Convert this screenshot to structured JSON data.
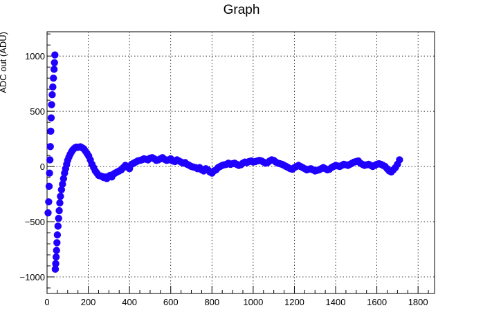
{
  "chart_data": {
    "type": "scatter",
    "title": "Graph",
    "xlabel": "",
    "ylabel": "ADC out (ADU)",
    "xlim": [
      0,
      1880
    ],
    "ylim": [
      -1150,
      1220
    ],
    "xticks": [
      0,
      200,
      400,
      600,
      800,
      1000,
      1200,
      1400,
      1600,
      1800
    ],
    "yticks": [
      -1000,
      -500,
      0,
      500,
      1000
    ],
    "ytick_labels": [
      "−1000",
      "−500",
      "0",
      "500",
      "1000"
    ],
    "grid": true,
    "marker_color": "#1f00ff",
    "series": [
      {
        "points": [
          [
            5,
            -420
          ],
          [
            8,
            -320
          ],
          [
            10,
            -180
          ],
          [
            12,
            -60
          ],
          [
            14,
            60
          ],
          [
            16,
            180
          ],
          [
            18,
            320
          ],
          [
            20,
            440
          ],
          [
            22,
            560
          ],
          [
            25,
            650
          ],
          [
            28,
            720
          ],
          [
            31,
            800
          ],
          [
            34,
            880
          ],
          [
            36,
            940
          ],
          [
            38,
            1010
          ],
          [
            40,
            -930
          ],
          [
            42,
            -880
          ],
          [
            44,
            -820
          ],
          [
            46,
            -760
          ],
          [
            48,
            -690
          ],
          [
            50,
            -620
          ],
          [
            53,
            -540
          ],
          [
            56,
            -470
          ],
          [
            59,
            -400
          ],
          [
            62,
            -330
          ],
          [
            65,
            -270
          ],
          [
            70,
            -210
          ],
          [
            75,
            -160
          ],
          [
            80,
            -110
          ],
          [
            85,
            -60
          ],
          [
            90,
            -20
          ],
          [
            95,
            20
          ],
          [
            100,
            55
          ],
          [
            106,
            85
          ],
          [
            112,
            110
          ],
          [
            118,
            130
          ],
          [
            124,
            148
          ],
          [
            130,
            160
          ],
          [
            136,
            170
          ],
          [
            142,
            175
          ],
          [
            148,
            172
          ],
          [
            155,
            175
          ],
          [
            162,
            178
          ],
          [
            170,
            170
          ],
          [
            178,
            160
          ],
          [
            186,
            140
          ],
          [
            194,
            118
          ],
          [
            202,
            95
          ],
          [
            210,
            60
          ],
          [
            218,
            20
          ],
          [
            226,
            -10
          ],
          [
            234,
            -40
          ],
          [
            242,
            -60
          ],
          [
            250,
            -80
          ],
          [
            258,
            -85
          ],
          [
            266,
            -90
          ],
          [
            274,
            -100
          ],
          [
            282,
            -95
          ],
          [
            290,
            -110
          ],
          [
            298,
            -90
          ],
          [
            306,
            -80
          ],
          [
            314,
            -95
          ],
          [
            322,
            -70
          ],
          [
            330,
            -60
          ],
          [
            340,
            -50
          ],
          [
            350,
            -40
          ],
          [
            360,
            -30
          ],
          [
            370,
            -10
          ],
          [
            380,
            10
          ],
          [
            390,
            -5
          ],
          [
            400,
            -20
          ],
          [
            410,
            20
          ],
          [
            420,
            30
          ],
          [
            430,
            40
          ],
          [
            440,
            50
          ],
          [
            450,
            55
          ],
          [
            460,
            60
          ],
          [
            470,
            70
          ],
          [
            480,
            65
          ],
          [
            490,
            60
          ],
          [
            500,
            75
          ],
          [
            510,
            80
          ],
          [
            520,
            70
          ],
          [
            530,
            55
          ],
          [
            540,
            60
          ],
          [
            550,
            70
          ],
          [
            560,
            80
          ],
          [
            570,
            65
          ],
          [
            580,
            55
          ],
          [
            590,
            60
          ],
          [
            600,
            70
          ],
          [
            610,
            50
          ],
          [
            620,
            45
          ],
          [
            630,
            60
          ],
          [
            640,
            50
          ],
          [
            650,
            40
          ],
          [
            660,
            30
          ],
          [
            670,
            35
          ],
          [
            680,
            20
          ],
          [
            690,
            10
          ],
          [
            700,
            0
          ],
          [
            710,
            -5
          ],
          [
            720,
            -10
          ],
          [
            730,
            -20
          ],
          [
            740,
            -10
          ],
          [
            750,
            -30
          ],
          [
            760,
            -40
          ],
          [
            770,
            -20
          ],
          [
            780,
            -30
          ],
          [
            790,
            -50
          ],
          [
            800,
            -60
          ],
          [
            810,
            -40
          ],
          [
            820,
            -30
          ],
          [
            830,
            -10
          ],
          [
            840,
            0
          ],
          [
            850,
            10
          ],
          [
            860,
            15
          ],
          [
            870,
            20
          ],
          [
            880,
            30
          ],
          [
            890,
            20
          ],
          [
            900,
            25
          ],
          [
            910,
            30
          ],
          [
            920,
            20
          ],
          [
            930,
            10
          ],
          [
            940,
            15
          ],
          [
            950,
            30
          ],
          [
            960,
            40
          ],
          [
            970,
            35
          ],
          [
            980,
            45
          ],
          [
            990,
            50
          ],
          [
            1000,
            40
          ],
          [
            1010,
            45
          ],
          [
            1020,
            50
          ],
          [
            1030,
            55
          ],
          [
            1040,
            50
          ],
          [
            1050,
            40
          ],
          [
            1060,
            30
          ],
          [
            1070,
            35
          ],
          [
            1080,
            50
          ],
          [
            1090,
            60
          ],
          [
            1100,
            55
          ],
          [
            1110,
            40
          ],
          [
            1120,
            30
          ],
          [
            1130,
            25
          ],
          [
            1140,
            20
          ],
          [
            1150,
            10
          ],
          [
            1160,
            0
          ],
          [
            1170,
            -10
          ],
          [
            1180,
            -20
          ],
          [
            1190,
            -25
          ],
          [
            1200,
            -10
          ],
          [
            1210,
            0
          ],
          [
            1220,
            10
          ],
          [
            1230,
            0
          ],
          [
            1240,
            -10
          ],
          [
            1250,
            -20
          ],
          [
            1260,
            -30
          ],
          [
            1270,
            -25
          ],
          [
            1280,
            -20
          ],
          [
            1290,
            -30
          ],
          [
            1300,
            -40
          ],
          [
            1310,
            -35
          ],
          [
            1320,
            -30
          ],
          [
            1330,
            -20
          ],
          [
            1340,
            -10
          ],
          [
            1350,
            -20
          ],
          [
            1360,
            -30
          ],
          [
            1370,
            -25
          ],
          [
            1380,
            -10
          ],
          [
            1390,
            0
          ],
          [
            1400,
            10
          ],
          [
            1410,
            5
          ],
          [
            1420,
            0
          ],
          [
            1430,
            10
          ],
          [
            1440,
            20
          ],
          [
            1450,
            15
          ],
          [
            1460,
            10
          ],
          [
            1470,
            20
          ],
          [
            1480,
            30
          ],
          [
            1490,
            40
          ],
          [
            1500,
            45
          ],
          [
            1510,
            50
          ],
          [
            1520,
            30
          ],
          [
            1530,
            20
          ],
          [
            1540,
            10
          ],
          [
            1550,
            15
          ],
          [
            1560,
            20
          ],
          [
            1570,
            10
          ],
          [
            1580,
            0
          ],
          [
            1590,
            10
          ],
          [
            1600,
            20
          ],
          [
            1610,
            25
          ],
          [
            1620,
            20
          ],
          [
            1630,
            10
          ],
          [
            1640,
            0
          ],
          [
            1650,
            -20
          ],
          [
            1660,
            -40
          ],
          [
            1670,
            -50
          ],
          [
            1680,
            -30
          ],
          [
            1690,
            -10
          ],
          [
            1700,
            20
          ],
          [
            1710,
            60
          ]
        ]
      }
    ]
  }
}
